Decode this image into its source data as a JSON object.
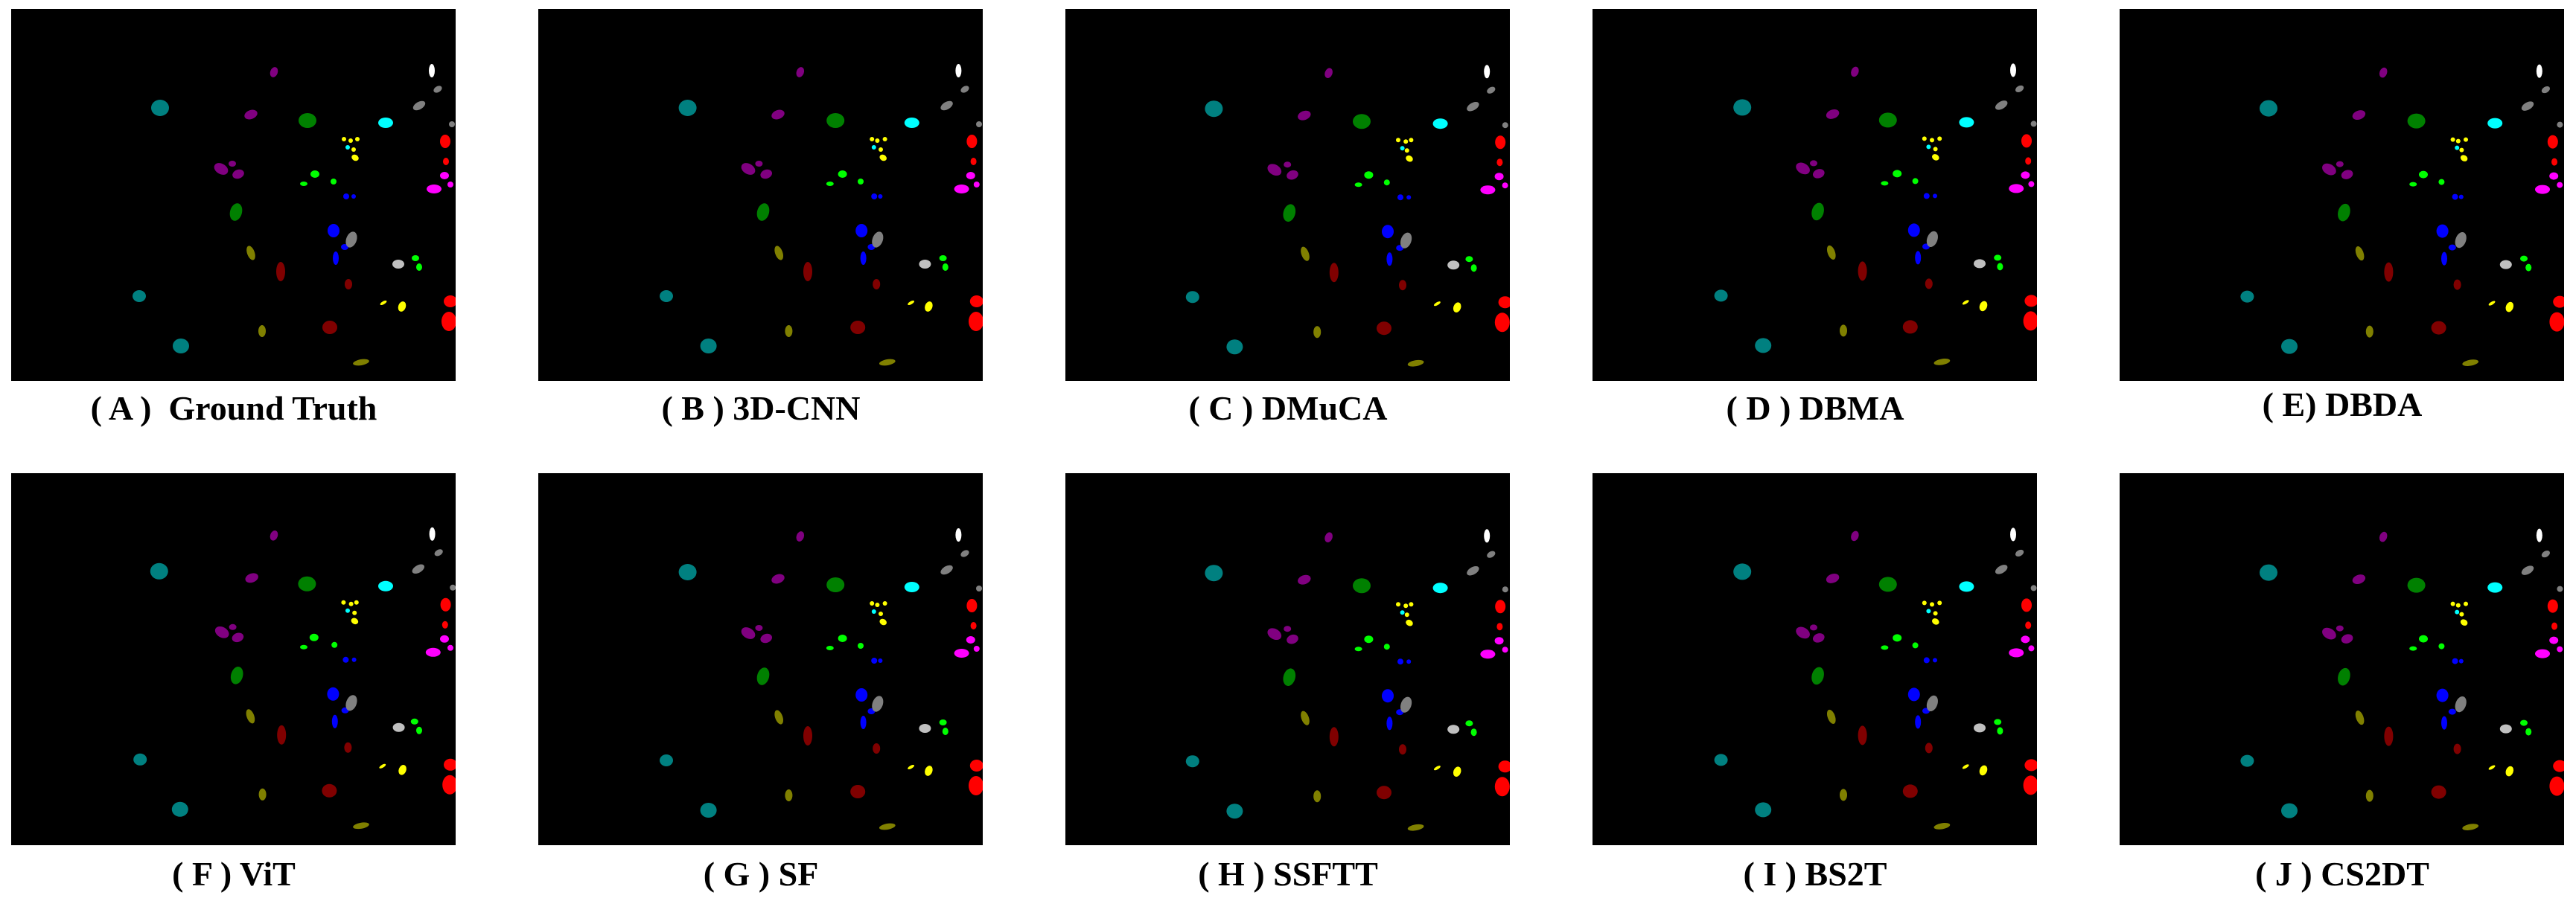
{
  "figure": {
    "panels": [
      {
        "id": "A",
        "caption": "( A )  Ground Truth"
      },
      {
        "id": "B",
        "caption": "( B ) 3D-CNN"
      },
      {
        "id": "C",
        "caption": "( C ) DMuCA"
      },
      {
        "id": "D",
        "caption": "( D ) DBMA"
      },
      {
        "id": "E",
        "caption": "( E) DBDA"
      },
      {
        "id": "F",
        "caption": "( F ) ViT"
      },
      {
        "id": "G",
        "caption": "( G ) SF"
      },
      {
        "id": "H",
        "caption": "( H ) SSFTT"
      },
      {
        "id": "I",
        "caption": "( I ) BS2T"
      },
      {
        "id": "J",
        "caption": "( J ) CS2DT"
      }
    ],
    "class_colors": [
      "#008080",
      "#800080",
      "#008000",
      "#00ffff",
      "#ffff00",
      "#ffffff",
      "#ff0000",
      "#ff00ff",
      "#0000ff",
      "#00ff00",
      "#808000",
      "#800000",
      "#808080",
      "#c0c0c0"
    ]
  }
}
